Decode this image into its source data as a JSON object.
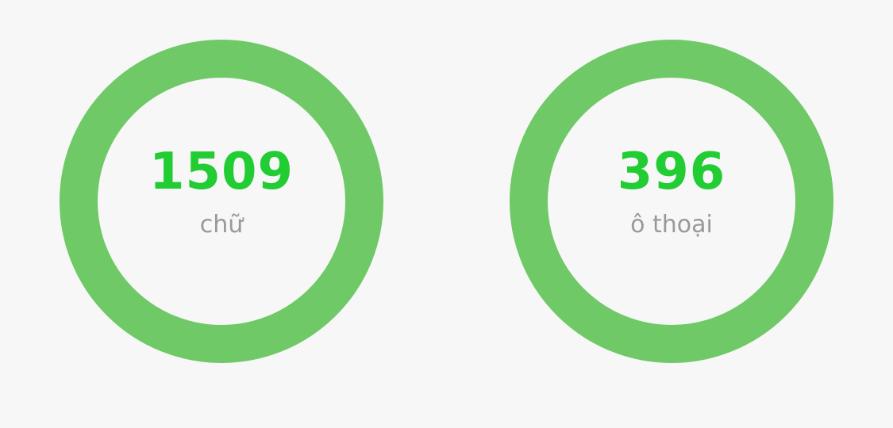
{
  "stats": [
    {
      "value": "1509",
      "label": "chữ"
    },
    {
      "value": "396",
      "label": "ô thoại"
    }
  ],
  "colors": {
    "ring": "#6ec966",
    "value": "#22cc33",
    "label": "#999999",
    "background": "#f7f7f7"
  }
}
